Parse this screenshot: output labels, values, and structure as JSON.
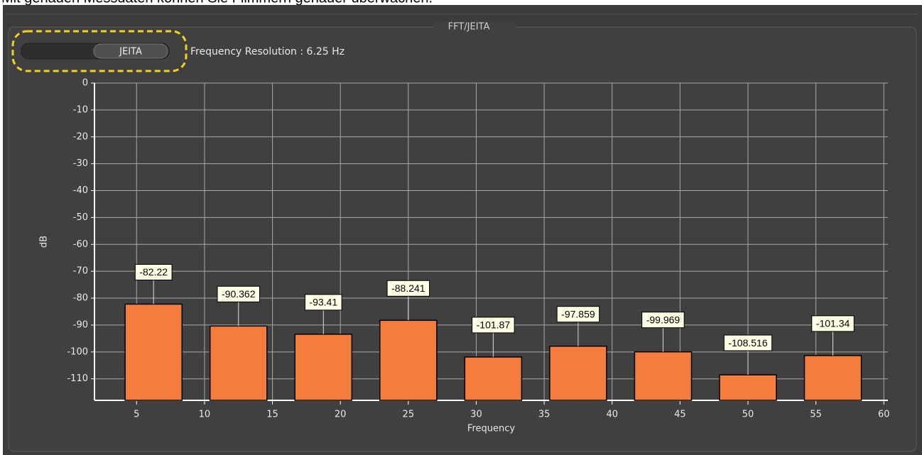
{
  "caption": "Mit genauen Messdaten können Sie Flimmern genauer überwachen.",
  "panel_title": "FFT/JEITA",
  "button": "JEITA",
  "resolution_label": "Frequency Resolution : 6.25 Hz",
  "chart_data": {
    "type": "bar",
    "x_label": "Frequency",
    "y_label": "dB",
    "x": [
      6.25,
      12.5,
      18.75,
      25,
      31.25,
      37.5,
      43.75,
      50,
      56.25
    ],
    "values": [
      -82.22,
      -90.362,
      -93.41,
      -88.241,
      -101.87,
      -97.859,
      -99.969,
      -108.516,
      -101.34
    ],
    "color": "#f47c3c",
    "xlim": [
      1.9,
      60.3
    ],
    "xticks": [
      5,
      10,
      15,
      20,
      25,
      30,
      35,
      40,
      45,
      50,
      55,
      60
    ],
    "ylim": [
      -118,
      0
    ],
    "yticks": [
      0,
      -10,
      -20,
      -30,
      -40,
      -50,
      -60,
      -70,
      -80,
      -90,
      -100,
      -110
    ],
    "grid": true
  }
}
